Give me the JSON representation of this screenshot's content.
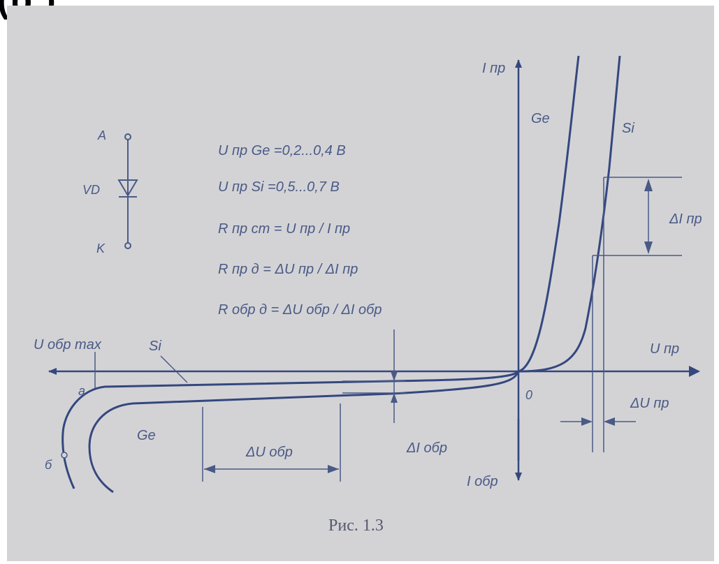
{
  "header": {
    "title_fragment": "(p                )"
  },
  "diagram": {
    "symbol": {
      "anode": "A",
      "name": "VD",
      "cathode": "K"
    },
    "formulas": [
      "U пр Ge =0,2...0,4 B",
      "U пр Si =0,5...0,7 B",
      "R пр ст = U пр / I пр",
      "R пр д = ΔU пр / ΔI пр",
      "R обр д = ΔU обр / ΔI обр"
    ],
    "axes": {
      "y_pos": "I пр",
      "y_neg": "I обр",
      "x_pos": "U пр",
      "origin": "0"
    },
    "labels": {
      "ge_forward": "Ge",
      "si_forward": "Si",
      "u_obr_max": "U обр max",
      "si_reverse": "Si",
      "point_a": "a",
      "point_b": "б",
      "ge_reverse": "Ge",
      "delta_u_obr": "ΔU обр",
      "delta_i_obr": "ΔI обр",
      "delta_i_pr": "ΔI пр",
      "delta_u_pr": "ΔU пр"
    },
    "caption": "Рис. 1.3"
  },
  "colors": {
    "background": "#d3d3d6",
    "ink": "#34477e"
  }
}
